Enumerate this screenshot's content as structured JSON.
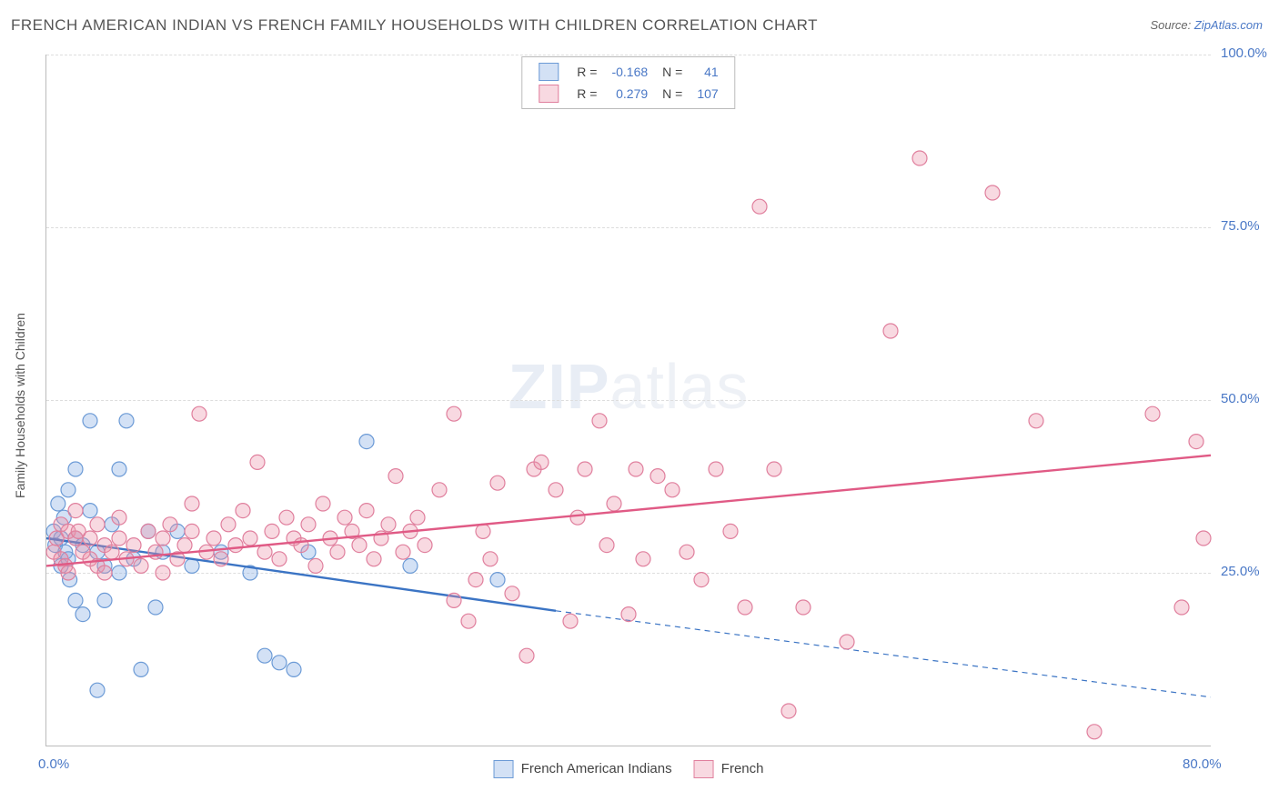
{
  "title": "FRENCH AMERICAN INDIAN VS FRENCH FAMILY HOUSEHOLDS WITH CHILDREN CORRELATION CHART",
  "source_label": "Source: ",
  "source_value": "ZipAtlas.com",
  "ylabel": "Family Households with Children",
  "watermark": {
    "bold": "ZIP",
    "rest": "atlas"
  },
  "chart": {
    "type": "scatter",
    "background_color": "#ffffff",
    "grid_color": "#dddddd",
    "axis_color": "#bbbbbb",
    "tick_color": "#4a78c6",
    "marker_radius": 8,
    "marker_stroke_width": 1.2,
    "line_width": 2.4,
    "xlim": [
      0,
      80
    ],
    "ylim": [
      0,
      100
    ],
    "xticks": [
      {
        "v": 0,
        "label": "0.0%"
      },
      {
        "v": 80,
        "label": "80.0%"
      }
    ],
    "yticks": [
      {
        "v": 25,
        "label": "25.0%"
      },
      {
        "v": 50,
        "label": "50.0%"
      },
      {
        "v": 75,
        "label": "75.0%"
      },
      {
        "v": 100,
        "label": "100.0%"
      }
    ],
    "series": [
      {
        "name": "French American Indians",
        "fill": "rgba(130,170,225,0.35)",
        "stroke": "#6b9ad6",
        "swatch_border": "#6b9ad6",
        "stats": {
          "R": "-0.168",
          "N": "41"
        },
        "trend": {
          "x1": 0,
          "y1": 30,
          "x2_solid": 35,
          "y2_solid": 19.5,
          "x2": 80,
          "y2": 7,
          "color": "#3b74c4"
        },
        "points": [
          [
            0.5,
            31
          ],
          [
            0.6,
            29
          ],
          [
            0.8,
            35
          ],
          [
            1,
            30
          ],
          [
            1,
            26
          ],
          [
            1.2,
            33
          ],
          [
            1.3,
            28
          ],
          [
            1.5,
            27
          ],
          [
            1.5,
            37
          ],
          [
            1.6,
            24
          ],
          [
            2,
            30
          ],
          [
            2,
            21
          ],
          [
            2,
            40
          ],
          [
            2.5,
            29
          ],
          [
            2.5,
            19
          ],
          [
            3,
            34
          ],
          [
            3,
            47
          ],
          [
            3.5,
            28
          ],
          [
            3.5,
            8
          ],
          [
            4,
            26
          ],
          [
            4,
            21
          ],
          [
            4.5,
            32
          ],
          [
            5,
            40
          ],
          [
            5,
            25
          ],
          [
            5.5,
            47
          ],
          [
            6,
            27
          ],
          [
            6.5,
            11
          ],
          [
            7,
            31
          ],
          [
            7.5,
            20
          ],
          [
            8,
            28
          ],
          [
            9,
            31
          ],
          [
            10,
            26
          ],
          [
            12,
            28
          ],
          [
            14,
            25
          ],
          [
            15,
            13
          ],
          [
            16,
            12
          ],
          [
            17,
            11
          ],
          [
            18,
            28
          ],
          [
            22,
            44
          ],
          [
            25,
            26
          ],
          [
            31,
            24
          ]
        ]
      },
      {
        "name": "French",
        "fill": "rgba(235,145,170,0.35)",
        "stroke": "#e07f9d",
        "swatch_border": "#e07f9d",
        "stats": {
          "R": "0.279",
          "N": "107"
        },
        "trend": {
          "x1": 0,
          "y1": 26,
          "x2": 80,
          "y2": 42,
          "color": "#e05a85"
        },
        "points": [
          [
            0.5,
            28
          ],
          [
            0.7,
            30
          ],
          [
            1,
            27
          ],
          [
            1,
            32
          ],
          [
            1.3,
            26
          ],
          [
            1.5,
            31
          ],
          [
            1.5,
            25
          ],
          [
            2,
            30
          ],
          [
            2,
            34
          ],
          [
            2.2,
            31
          ],
          [
            2.5,
            28
          ],
          [
            3,
            27
          ],
          [
            3,
            30
          ],
          [
            3.5,
            32
          ],
          [
            3.5,
            26
          ],
          [
            4,
            29
          ],
          [
            4,
            25
          ],
          [
            4.5,
            28
          ],
          [
            5,
            30
          ],
          [
            5,
            33
          ],
          [
            5.5,
            27
          ],
          [
            6,
            29
          ],
          [
            6.5,
            26
          ],
          [
            7,
            31
          ],
          [
            7.5,
            28
          ],
          [
            8,
            30
          ],
          [
            8,
            25
          ],
          [
            8.5,
            32
          ],
          [
            9,
            27
          ],
          [
            9.5,
            29
          ],
          [
            10,
            31
          ],
          [
            10,
            35
          ],
          [
            10.5,
            48
          ],
          [
            11,
            28
          ],
          [
            11.5,
            30
          ],
          [
            12,
            27
          ],
          [
            12.5,
            32
          ],
          [
            13,
            29
          ],
          [
            13.5,
            34
          ],
          [
            14,
            30
          ],
          [
            14.5,
            41
          ],
          [
            15,
            28
          ],
          [
            15.5,
            31
          ],
          [
            16,
            27
          ],
          [
            16.5,
            33
          ],
          [
            17,
            30
          ],
          [
            17.5,
            29
          ],
          [
            18,
            32
          ],
          [
            18.5,
            26
          ],
          [
            19,
            35
          ],
          [
            19.5,
            30
          ],
          [
            20,
            28
          ],
          [
            20.5,
            33
          ],
          [
            21,
            31
          ],
          [
            21.5,
            29
          ],
          [
            22,
            34
          ],
          [
            22.5,
            27
          ],
          [
            23,
            30
          ],
          [
            23.5,
            32
          ],
          [
            24,
            39
          ],
          [
            24.5,
            28
          ],
          [
            25,
            31
          ],
          [
            25.5,
            33
          ],
          [
            26,
            29
          ],
          [
            27,
            37
          ],
          [
            28,
            21
          ],
          [
            28,
            48
          ],
          [
            29,
            18
          ],
          [
            29.5,
            24
          ],
          [
            30,
            31
          ],
          [
            30.5,
            27
          ],
          [
            31,
            38
          ],
          [
            32,
            22
          ],
          [
            33,
            13
          ],
          [
            33.5,
            40
          ],
          [
            34,
            41
          ],
          [
            35,
            37
          ],
          [
            36,
            18
          ],
          [
            36.5,
            33
          ],
          [
            37,
            40
          ],
          [
            38,
            47
          ],
          [
            38.5,
            29
          ],
          [
            39,
            35
          ],
          [
            40,
            19
          ],
          [
            40.5,
            40
          ],
          [
            41,
            27
          ],
          [
            42,
            39
          ],
          [
            43,
            37
          ],
          [
            44,
            28
          ],
          [
            45,
            24
          ],
          [
            46,
            40
          ],
          [
            47,
            31
          ],
          [
            48,
            20
          ],
          [
            49,
            78
          ],
          [
            50,
            40
          ],
          [
            51,
            5
          ],
          [
            52,
            20
          ],
          [
            55,
            15
          ],
          [
            58,
            60
          ],
          [
            60,
            85
          ],
          [
            65,
            80
          ],
          [
            68,
            47
          ],
          [
            72,
            2
          ],
          [
            76,
            48
          ],
          [
            78,
            20
          ],
          [
            79,
            44
          ],
          [
            79.5,
            30
          ]
        ]
      }
    ],
    "legend_top_labels": {
      "R": "R =",
      "N": "N ="
    },
    "legend_bottom": [
      {
        "label": "French American Indians",
        "fill": "rgba(130,170,225,0.35)",
        "border": "#6b9ad6"
      },
      {
        "label": "French",
        "fill": "rgba(235,145,170,0.35)",
        "border": "#e07f9d"
      }
    ]
  }
}
